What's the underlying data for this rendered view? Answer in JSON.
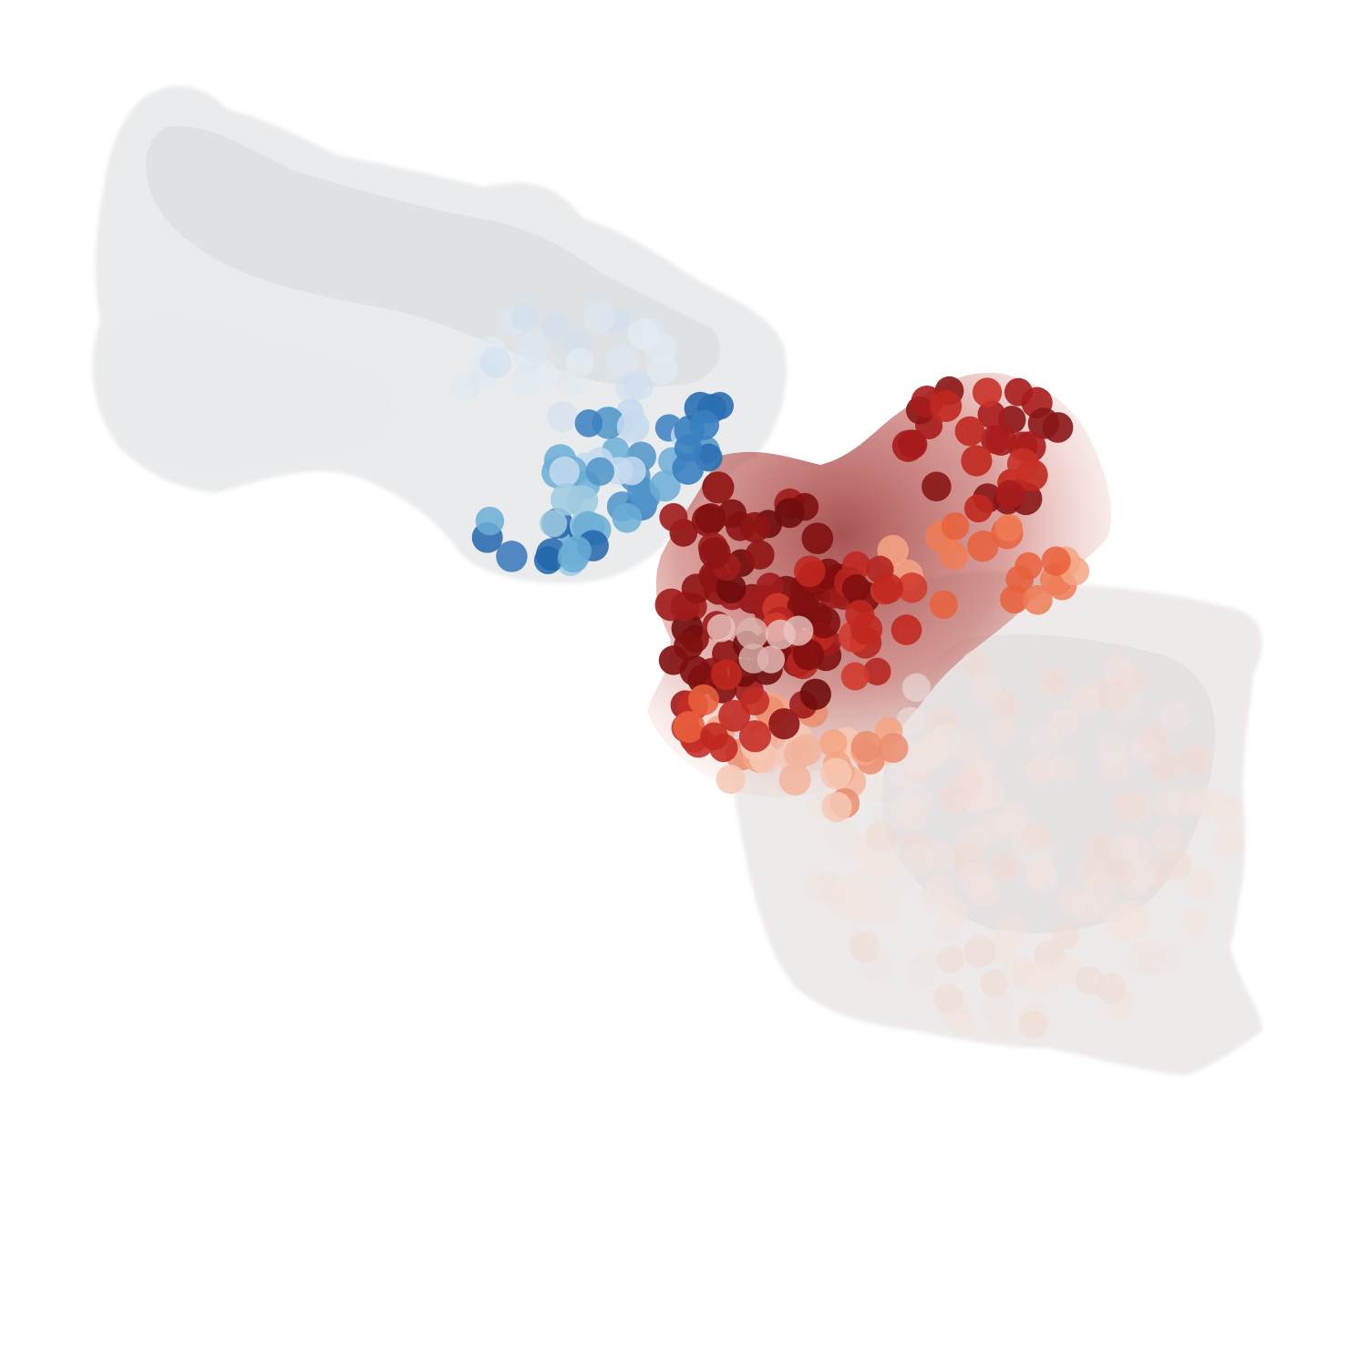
{
  "image": {
    "subject": "protein-complex-surface",
    "background": "#ffffff"
  },
  "palette": {
    "surface_left": "#d9dde2",
    "surface_right": "#e3dede",
    "blue_light": "#c6dbef",
    "blue_mid": "#6baed6",
    "blue_dark": "#2166ac",
    "red_dark": "#7f0f0f",
    "red_mid": "#c0281f",
    "red_orange": "#e8603c",
    "salmon": "#f4a582",
    "pale": "#f3e4de"
  }
}
